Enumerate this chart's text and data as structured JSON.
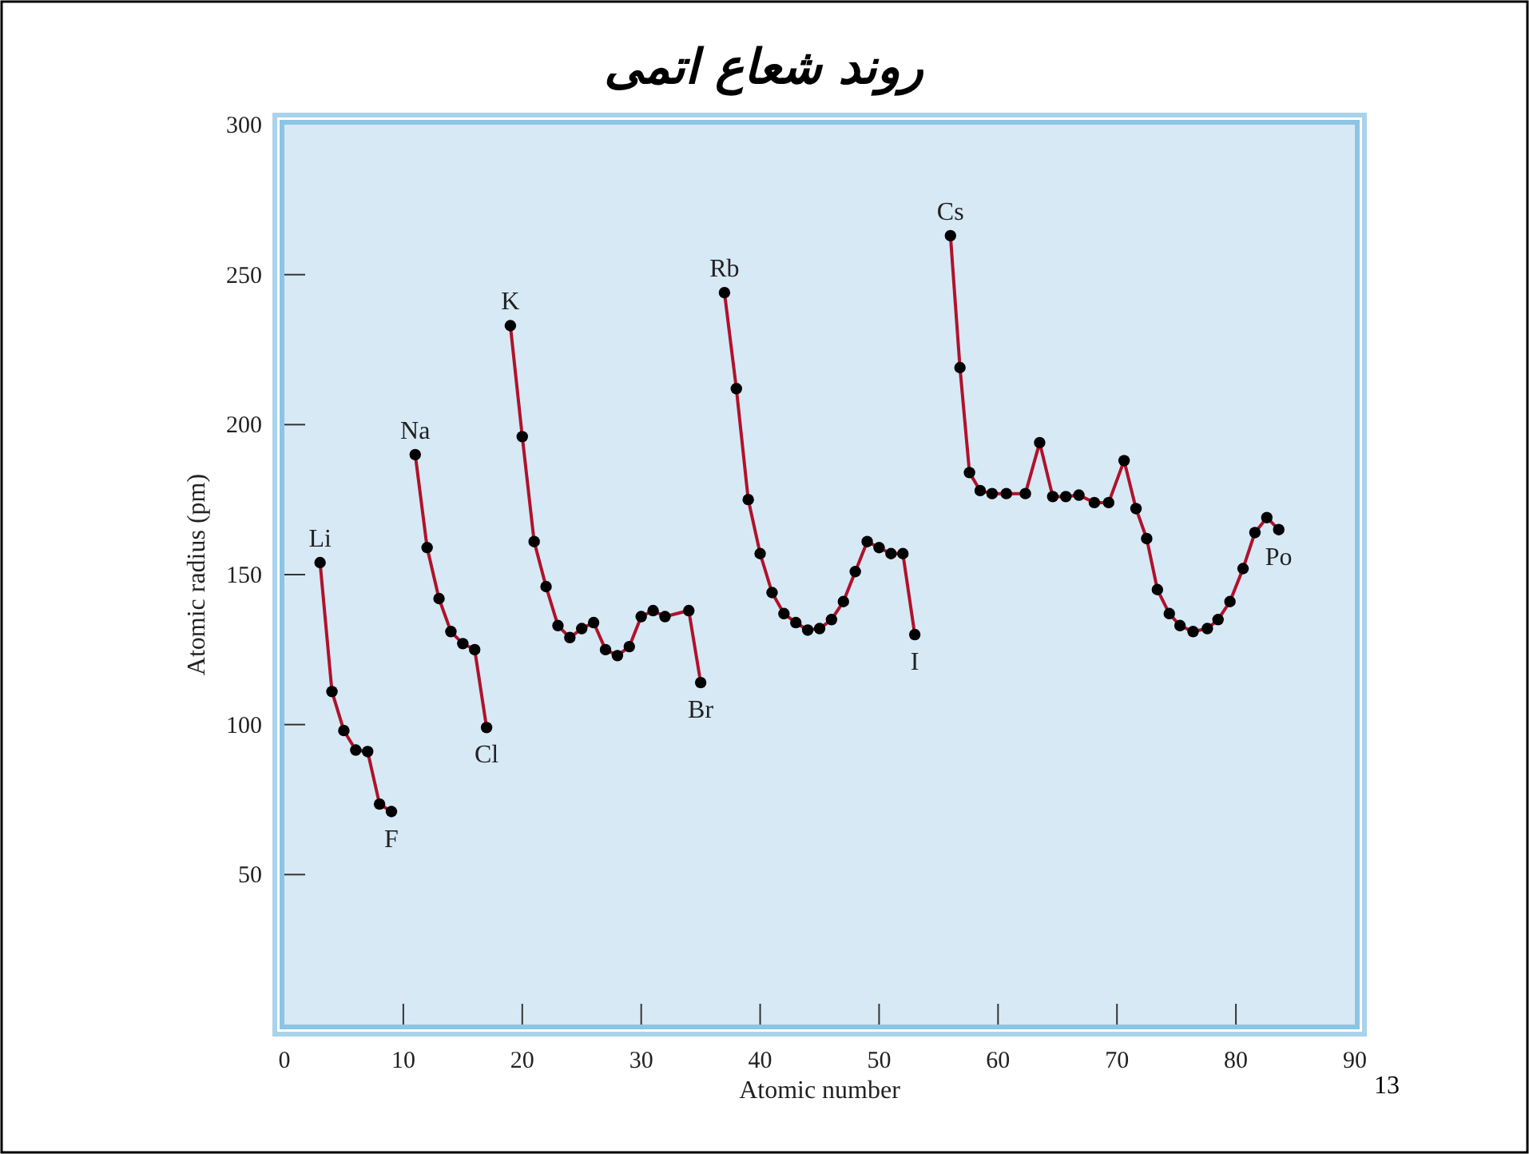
{
  "chart_data": {
    "type": "line",
    "title": "روند شعاع اتمی",
    "xlabel": "Atomic number",
    "ylabel": "Atomic radius (pm)",
    "xlim": [
      0,
      90
    ],
    "ylim": [
      0,
      300
    ],
    "xticks": [
      0,
      10,
      20,
      30,
      40,
      50,
      60,
      70,
      80,
      90
    ],
    "yticks": [
      50,
      100,
      150,
      200,
      250,
      300
    ],
    "grid": false,
    "marker": "circle",
    "line_style": "solid",
    "series": [
      {
        "color": "#b0112b",
        "x": [
          3,
          4,
          5,
          6,
          7,
          8,
          9
        ],
        "values": [
          154,
          111,
          98,
          91.5,
          91,
          73.5,
          71
        ]
      },
      {
        "color": "#b0112b",
        "x": [
          11,
          12,
          13,
          14,
          15,
          16,
          17
        ],
        "values": [
          190,
          159,
          142,
          131,
          127,
          125,
          99
        ]
      },
      {
        "color": "#b0112b",
        "x": [
          19,
          20,
          21,
          22,
          23,
          24,
          25,
          26,
          27,
          28,
          29,
          30,
          31,
          32,
          34,
          35
        ],
        "values": [
          233,
          196,
          161,
          146,
          133,
          129,
          132,
          134,
          125,
          123,
          126,
          136,
          138,
          136,
          138,
          114
        ]
      },
      {
        "color": "#b0112b",
        "x": [
          37,
          38,
          39,
          40,
          41,
          42,
          43,
          44,
          45,
          46,
          47,
          48,
          49,
          50,
          51,
          52,
          53
        ],
        "values": [
          244,
          212,
          175,
          157,
          144,
          137,
          134,
          131.5,
          132,
          135,
          141,
          151,
          161,
          159,
          157,
          157,
          130
        ]
      },
      {
        "color": "#b0112b",
        "x": [
          56,
          56.8,
          57.6,
          58.5,
          59.5,
          60.7,
          62.3,
          63.5,
          64.6,
          65.7,
          66.8,
          68.1,
          69.3,
          70.6,
          71.6,
          72.5,
          73.4,
          74.4,
          75.3,
          76.4,
          77.6,
          78.5,
          79.5,
          80.6,
          81.6,
          82.6,
          83.6
        ],
        "values": [
          263,
          219,
          184,
          178,
          177,
          177,
          177,
          194,
          176,
          176,
          176.5,
          174,
          174,
          188,
          172,
          162,
          145,
          137,
          133,
          131,
          132,
          135,
          141,
          152,
          164,
          169,
          165
        ]
      }
    ],
    "annotations": [
      {
        "text": "Li",
        "x": 3,
        "y": 154
      },
      {
        "text": "F",
        "x": 9,
        "y": 71
      },
      {
        "text": "Na",
        "x": 11,
        "y": 190
      },
      {
        "text": "Cl",
        "x": 17,
        "y": 99
      },
      {
        "text": "K",
        "x": 19,
        "y": 233
      },
      {
        "text": "Br",
        "x": 35,
        "y": 114
      },
      {
        "text": "Rb",
        "x": 37,
        "y": 244
      },
      {
        "text": "I",
        "x": 53,
        "y": 130
      },
      {
        "text": "Cs",
        "x": 56,
        "y": 263
      },
      {
        "text": "Po",
        "x": 83.6,
        "y": 165
      },
      "13"
    ]
  }
}
